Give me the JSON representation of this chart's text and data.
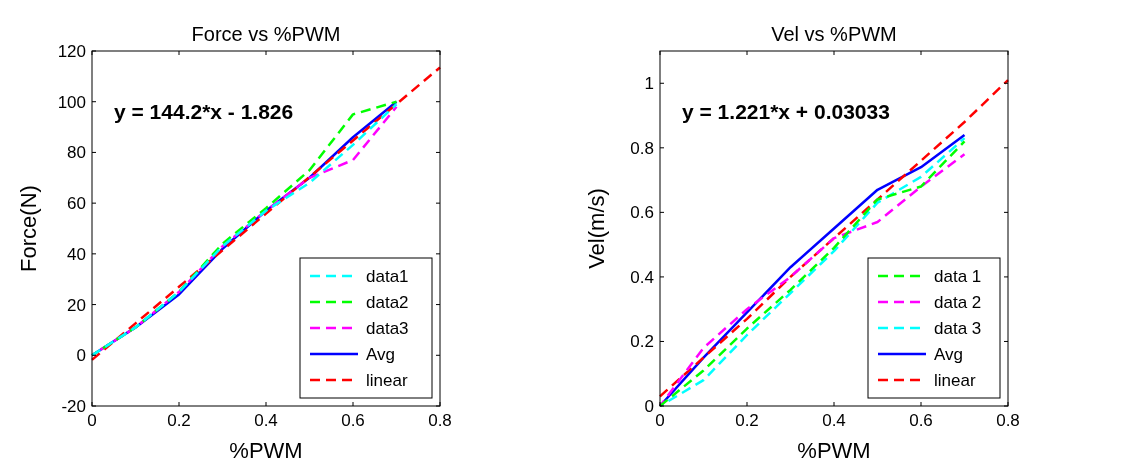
{
  "chart_data": [
    {
      "type": "line",
      "title": "Force vs %PWM",
      "xlabel": "%PWM",
      "ylabel": "Force(N)",
      "annotations": [
        "y = 144.2*x - 1.826"
      ],
      "x": [
        0,
        0.1,
        0.2,
        0.3,
        0.4,
        0.5,
        0.6,
        0.7
      ],
      "xlim": [
        0,
        0.8
      ],
      "xticks": [
        0,
        0.2,
        0.4,
        0.6,
        0.8
      ],
      "ylim": [
        -20,
        120
      ],
      "yticks": [
        -20,
        0,
        20,
        40,
        60,
        80,
        100,
        120
      ],
      "legend": "bottom right",
      "grid": false,
      "series": [
        {
          "name": "data1",
          "color": "#00ffff",
          "line_style": "dashed",
          "values": [
            0,
            11,
            25,
            43,
            57,
            68,
            83,
            99
          ]
        },
        {
          "name": "data2",
          "color": "#00ff00",
          "line_style": "dashed",
          "values": [
            0,
            11,
            25,
            44,
            58,
            73,
            95,
            100
          ]
        },
        {
          "name": "data3",
          "color": "#ff00ff",
          "line_style": "dashed",
          "values": [
            0,
            11,
            25,
            43,
            57,
            70,
            77,
            98
          ]
        },
        {
          "name": "Avg",
          "color": "#0000ff",
          "line_style": "solid",
          "values": [
            0,
            11,
            24,
            42,
            57,
            70,
            86,
            100
          ]
        },
        {
          "name": "linear",
          "color": "#ff0000",
          "line_style": "dashed",
          "x": [
            0,
            0.1,
            0.2,
            0.3,
            0.4,
            0.5,
            0.6,
            0.7,
            0.8
          ],
          "values": [
            -1.8,
            12.6,
            27,
            41.4,
            55.9,
            70.3,
            84.7,
            99.1,
            113.5
          ]
        }
      ]
    },
    {
      "type": "line",
      "title": "Vel vs %PWM",
      "xlabel": "%PWM",
      "ylabel": "Vel(m/s)",
      "annotations": [
        "y = 1.221*x + 0.03033"
      ],
      "x": [
        0,
        0.1,
        0.2,
        0.3,
        0.4,
        0.5,
        0.6,
        0.7
      ],
      "xlim": [
        0,
        0.8
      ],
      "xticks": [
        0,
        0.2,
        0.4,
        0.6,
        0.8
      ],
      "ylim": [
        0,
        1.1
      ],
      "yticks": [
        0,
        0.2,
        0.4,
        0.6,
        0.8,
        1
      ],
      "legend": "bottom right",
      "grid": false,
      "series": [
        {
          "name": "data 1",
          "color": "#00ff00",
          "line_style": "dashed",
          "values": [
            0,
            0.11,
            0.24,
            0.36,
            0.49,
            0.64,
            0.68,
            0.82
          ]
        },
        {
          "name": "data 2",
          "color": "#ff00ff",
          "line_style": "dashed",
          "values": [
            0,
            0.18,
            0.3,
            0.4,
            0.52,
            0.57,
            0.68,
            0.78
          ]
        },
        {
          "name": "data 3",
          "color": "#00ffff",
          "line_style": "dashed",
          "values": [
            0,
            0.08,
            0.22,
            0.35,
            0.48,
            0.63,
            0.71,
            0.83
          ]
        },
        {
          "name": "Avg",
          "color": "#0000ff",
          "line_style": "solid",
          "values": [
            0,
            0.15,
            0.29,
            0.43,
            0.55,
            0.67,
            0.74,
            0.84
          ]
        },
        {
          "name": "linear",
          "color": "#ff0000",
          "line_style": "dashed",
          "x": [
            0,
            0.1,
            0.2,
            0.3,
            0.4,
            0.5,
            0.6,
            0.7,
            0.8
          ],
          "values": [
            0.03,
            0.15,
            0.27,
            0.4,
            0.52,
            0.64,
            0.76,
            0.88,
            1.01
          ]
        }
      ]
    }
  ]
}
